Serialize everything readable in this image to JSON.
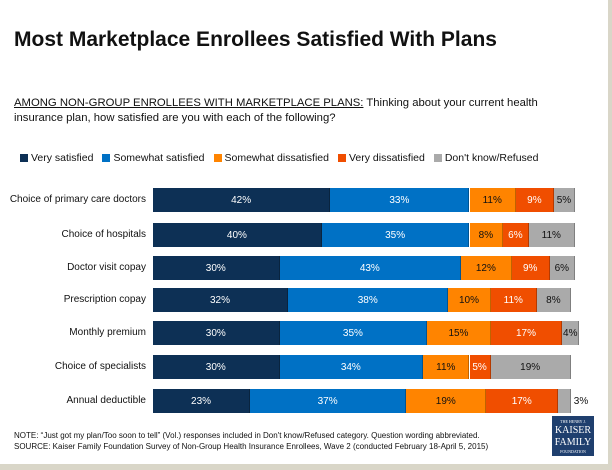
{
  "chart_data": {
    "type": "bar",
    "orientation": "horizontal",
    "stacked": true,
    "title": "Most Marketplace Enrollees Satisfied With Plans",
    "subtitle_lead": "AMONG NON-GROUP ENROLLEES WITH MARKETPLACE PLANS:",
    "subtitle": " Thinking about your current health insurance plan, how satisfied are you with each of the following?",
    "categories": [
      "Choice of primary care doctors",
      "Choice of hospitals",
      "Doctor visit copay",
      "Prescription copay",
      "Monthly premium",
      "Choice of specialists",
      "Annual deductible"
    ],
    "series": [
      {
        "name": "Very satisfied",
        "color": "#0d3055",
        "text": "#ffffff",
        "values": [
          42,
          40,
          30,
          32,
          30,
          30,
          23
        ]
      },
      {
        "name": "Somewhat satisfied",
        "color": "#0071c5",
        "text": "#ffffff",
        "values": [
          33,
          35,
          43,
          38,
          35,
          34,
          37
        ]
      },
      {
        "name": "Somewhat dissatisfied",
        "color": "#ff8400",
        "text": "#111111",
        "values": [
          11,
          8,
          12,
          10,
          15,
          11,
          19
        ]
      },
      {
        "name": "Very dissatisfied",
        "color": "#f04e00",
        "text": "#ffffff",
        "values": [
          9,
          6,
          9,
          11,
          17,
          5,
          17
        ]
      },
      {
        "name": "Don't know/Refused",
        "color": "#aaaaaa",
        "text": "#111111",
        "values": [
          5,
          11,
          6,
          8,
          4,
          19,
          3
        ]
      }
    ],
    "legend": "top",
    "grid": false
  },
  "notes": [
    "NOTE: “Just got my plan/Too soon to tell” (Vol.) responses included in Don't know/Refused category. Question wording abbreviated.",
    "SOURCE: Kaiser Family Foundation Survey of Non-Group Health Insurance Enrollees, Wave 2 (conducted February 18-April 5, 2015)"
  ],
  "logo": {
    "line1": "THE HENRY J.",
    "line2": "KAISER",
    "line3": "FAMILY",
    "line4": "FOUNDATION"
  }
}
